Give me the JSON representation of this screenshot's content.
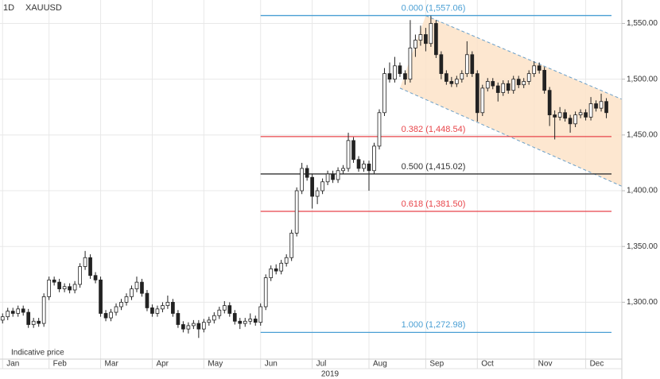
{
  "chart_data": {
    "type": "candlestick",
    "symbol": "XAUUSD",
    "interval": "1D",
    "note": "Indicative price",
    "xlabel": "2019",
    "xlim": [
      -0.5,
      120
    ],
    "xticks": [
      {
        "value": 0,
        "label": "Jan"
      },
      {
        "value": 9,
        "label": "Feb"
      },
      {
        "value": 19,
        "label": "Mar"
      },
      {
        "value": 29,
        "label": "Apr"
      },
      {
        "value": 39,
        "label": "May"
      },
      {
        "value": 50,
        "label": "Jun"
      },
      {
        "value": 60,
        "label": "Jul"
      },
      {
        "value": 71,
        "label": "Aug"
      },
      {
        "value": 82,
        "label": "Sep"
      },
      {
        "value": 92,
        "label": "Oct"
      },
      {
        "value": 103,
        "label": "Nov"
      },
      {
        "value": 113,
        "label": "Dec"
      }
    ],
    "ylim": [
      1249,
      1571
    ],
    "yticks": [
      {
        "value": 1300,
        "label": "1,300.00"
      },
      {
        "value": 1350,
        "label": "1,350.00"
      },
      {
        "value": 1400,
        "label": "1,400.00"
      },
      {
        "value": 1450,
        "label": "1,450.00"
      },
      {
        "value": 1500,
        "label": "1,500.00"
      },
      {
        "value": 1550,
        "label": "1,550.00"
      }
    ],
    "grid": true,
    "up_color": "#ffffff",
    "down_color": "#222222",
    "candles": [
      [
        1284,
        1290,
        1281,
        1287
      ],
      [
        1287,
        1295,
        1284,
        1292
      ],
      [
        1292,
        1295,
        1287,
        1290
      ],
      [
        1290,
        1297,
        1287,
        1294
      ],
      [
        1294,
        1297,
        1288,
        1291
      ],
      [
        1291,
        1294,
        1277,
        1280
      ],
      [
        1280,
        1286,
        1277,
        1283
      ],
      [
        1283,
        1286,
        1278,
        1281
      ],
      [
        1281,
        1308,
        1278,
        1305
      ],
      [
        1305,
        1323,
        1302,
        1320
      ],
      [
        1320,
        1323,
        1315,
        1318
      ],
      [
        1318,
        1321,
        1309,
        1312
      ],
      [
        1312,
        1317,
        1309,
        1314
      ],
      [
        1314,
        1317,
        1308,
        1311
      ],
      [
        1311,
        1319,
        1308,
        1316
      ],
      [
        1316,
        1335,
        1313,
        1332
      ],
      [
        1332,
        1346,
        1329,
        1340
      ],
      [
        1340,
        1343,
        1321,
        1324
      ],
      [
        1324,
        1327,
        1317,
        1320
      ],
      [
        1320,
        1323,
        1287,
        1290
      ],
      [
        1290,
        1293,
        1283,
        1286
      ],
      [
        1286,
        1294,
        1283,
        1291
      ],
      [
        1291,
        1299,
        1288,
        1296
      ],
      [
        1296,
        1303,
        1293,
        1300
      ],
      [
        1300,
        1308,
        1297,
        1305
      ],
      [
        1305,
        1315,
        1302,
        1312
      ],
      [
        1312,
        1323,
        1309,
        1318
      ],
      [
        1318,
        1321,
        1305,
        1308
      ],
      [
        1308,
        1311,
        1292,
        1295
      ],
      [
        1295,
        1298,
        1287,
        1290
      ],
      [
        1290,
        1297,
        1287,
        1294
      ],
      [
        1294,
        1300,
        1291,
        1297
      ],
      [
        1297,
        1306,
        1294,
        1300
      ],
      [
        1300,
        1303,
        1287,
        1290
      ],
      [
        1290,
        1293,
        1277,
        1280
      ],
      [
        1280,
        1283,
        1273,
        1276
      ],
      [
        1276,
        1282,
        1272,
        1279
      ],
      [
        1279,
        1284,
        1276,
        1281
      ],
      [
        1281,
        1284,
        1268,
        1276
      ],
      [
        1276,
        1285,
        1273,
        1282
      ],
      [
        1282,
        1287,
        1279,
        1284
      ],
      [
        1284,
        1291,
        1281,
        1288
      ],
      [
        1288,
        1296,
        1285,
        1293
      ],
      [
        1293,
        1301,
        1290,
        1297
      ],
      [
        1297,
        1300,
        1287,
        1290
      ],
      [
        1290,
        1293,
        1280,
        1283
      ],
      [
        1283,
        1286,
        1276,
        1281
      ],
      [
        1281,
        1286,
        1278,
        1283
      ],
      [
        1283,
        1290,
        1280,
        1285
      ],
      [
        1285,
        1288,
        1279,
        1282
      ],
      [
        1282,
        1299,
        1279,
        1296
      ],
      [
        1296,
        1325,
        1293,
        1322
      ],
      [
        1322,
        1333,
        1319,
        1330
      ],
      [
        1330,
        1334,
        1325,
        1328
      ],
      [
        1328,
        1338,
        1325,
        1335
      ],
      [
        1335,
        1343,
        1332,
        1340
      ],
      [
        1340,
        1365,
        1337,
        1362
      ],
      [
        1362,
        1403,
        1359,
        1400
      ],
      [
        1400,
        1425,
        1397,
        1420
      ],
      [
        1420,
        1423,
        1409,
        1412
      ],
      [
        1412,
        1415,
        1384,
        1395
      ],
      [
        1395,
        1403,
        1388,
        1400
      ],
      [
        1400,
        1411,
        1397,
        1408
      ],
      [
        1408,
        1418,
        1405,
        1415
      ],
      [
        1415,
        1418,
        1407,
        1410
      ],
      [
        1410,
        1421,
        1407,
        1418
      ],
      [
        1418,
        1423,
        1415,
        1420
      ],
      [
        1420,
        1452,
        1417,
        1445
      ],
      [
        1445,
        1448,
        1425,
        1428
      ],
      [
        1428,
        1431,
        1417,
        1420
      ],
      [
        1420,
        1427,
        1417,
        1424
      ],
      [
        1424,
        1427,
        1400,
        1418
      ],
      [
        1418,
        1443,
        1415,
        1440
      ],
      [
        1440,
        1473,
        1437,
        1470
      ],
      [
        1470,
        1510,
        1467,
        1505
      ],
      [
        1505,
        1515,
        1497,
        1500
      ],
      [
        1500,
        1520,
        1497,
        1512
      ],
      [
        1512,
        1515,
        1502,
        1505
      ],
      [
        1505,
        1508,
        1495,
        1500
      ],
      [
        1500,
        1553,
        1497,
        1528
      ],
      [
        1528,
        1540,
        1520,
        1535
      ],
      [
        1535,
        1548,
        1530,
        1540
      ],
      [
        1540,
        1546,
        1525,
        1532
      ],
      [
        1532,
        1557,
        1529,
        1550
      ],
      [
        1550,
        1553,
        1519,
        1522
      ],
      [
        1522,
        1525,
        1500,
        1505
      ],
      [
        1505,
        1508,
        1495,
        1498
      ],
      [
        1498,
        1502,
        1493,
        1496
      ],
      [
        1496,
        1503,
        1493,
        1500
      ],
      [
        1500,
        1508,
        1497,
        1505
      ],
      [
        1505,
        1534,
        1502,
        1522
      ],
      [
        1522,
        1525,
        1502,
        1505
      ],
      [
        1505,
        1508,
        1462,
        1470
      ],
      [
        1470,
        1495,
        1467,
        1492
      ],
      [
        1492,
        1501,
        1489,
        1498
      ],
      [
        1498,
        1501,
        1491,
        1494
      ],
      [
        1494,
        1497,
        1480,
        1488
      ],
      [
        1488,
        1499,
        1485,
        1496
      ],
      [
        1496,
        1499,
        1487,
        1490
      ],
      [
        1490,
        1503,
        1487,
        1500
      ],
      [
        1500,
        1503,
        1492,
        1495
      ],
      [
        1495,
        1501,
        1492,
        1498
      ],
      [
        1498,
        1508,
        1495,
        1505
      ],
      [
        1505,
        1516,
        1502,
        1512
      ],
      [
        1512,
        1515,
        1505,
        1508
      ],
      [
        1508,
        1511,
        1487,
        1490
      ],
      [
        1490,
        1493,
        1458,
        1468
      ],
      [
        1468,
        1472,
        1446,
        1466
      ],
      [
        1466,
        1475,
        1463,
        1470
      ],
      [
        1470,
        1473,
        1462,
        1465
      ],
      [
        1465,
        1468,
        1452,
        1460
      ],
      [
        1460,
        1471,
        1457,
        1468
      ],
      [
        1468,
        1473,
        1465,
        1470
      ],
      [
        1470,
        1473,
        1463,
        1466
      ],
      [
        1466,
        1484,
        1463,
        1478
      ],
      [
        1478,
        1481,
        1471,
        1474
      ],
      [
        1474,
        1487,
        1471,
        1480
      ],
      [
        1480,
        1483,
        1465,
        1470
      ]
    ],
    "fib_from": 50,
    "fib_to": 118,
    "fib_levels": [
      {
        "value": 1557.06,
        "label": "0.000 (1,557.06)",
        "color": "#4a9fd4"
      },
      {
        "value": 1448.54,
        "label": "0.382 (1,448.54)",
        "color": "#e8454a"
      },
      {
        "value": 1415.02,
        "label": "0.500 (1,415.02)",
        "color": "#333333"
      },
      {
        "value": 1381.5,
        "label": "0.618 (1,381.50)",
        "color": "#e8454a"
      },
      {
        "value": 1272.98,
        "label": "1.000 (1,272.98)",
        "color": "#4a9fd4"
      }
    ],
    "channel": {
      "upper": [
        [
          82,
          1557
        ],
        [
          120,
          1482
        ]
      ],
      "lower": [
        [
          77,
          1492
        ],
        [
          120,
          1404
        ]
      ],
      "fill": "#fde3c8",
      "color": "#6a9fc8"
    }
  }
}
